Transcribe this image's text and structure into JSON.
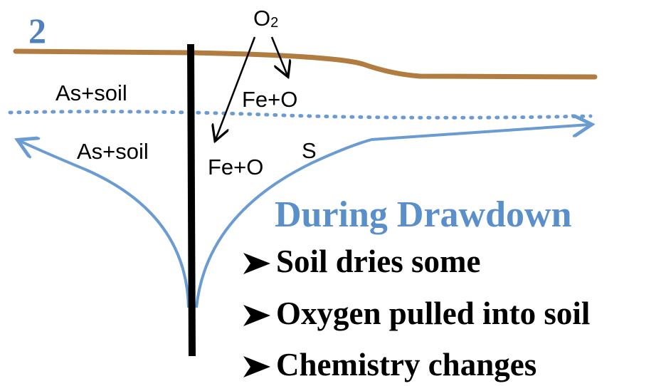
{
  "panel_number": "2",
  "oxygen": {
    "element": "O",
    "subscript": "2"
  },
  "labels": {
    "as_soil_upper": "As+soil",
    "as_soil_lower": "As+soil",
    "fe_o_upper": "Fe+O",
    "fe_o_lower": "Fe+O",
    "s": "S"
  },
  "heading": "During Drawdown",
  "bullets": [
    "Soil dries some",
    "Oxygen pulled into soil",
    "Chemistry changes"
  ]
}
